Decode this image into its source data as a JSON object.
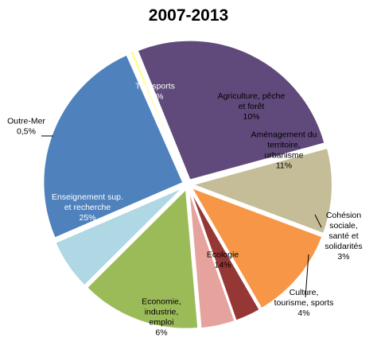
{
  "chart_data": {
    "type": "pie",
    "title": "2007-2013",
    "slices": [
      {
        "label": "Transports",
        "value_label": "27%",
        "value": 27,
        "color": "#604a7b",
        "text_color": "#ffffff"
      },
      {
        "label": "Agriculture, pêche et forêt",
        "value_label": "10%",
        "value": 10,
        "color": "#c4bd97",
        "text_color": "#000000"
      },
      {
        "label": "Aménagement du territoire, urbanisme",
        "value_label": "11%",
        "value": 11,
        "color": "#f79646",
        "text_color": "#000000"
      },
      {
        "label": "Cohésion sociale, santé et solidarités",
        "value_label": "3%",
        "value": 3,
        "color": "#953735",
        "text_color": "#000000"
      },
      {
        "label": "Culture, tourisme, sports",
        "value_label": "4%",
        "value": 4,
        "color": "#e6a29c",
        "text_color": "#000000"
      },
      {
        "label": "Ecologie",
        "value_label": "14%",
        "value": 14,
        "color": "#9bbb59",
        "text_color": "#000000"
      },
      {
        "label": "Economie, industrie, emploi",
        "value_label": "6%",
        "value": 6,
        "color": "#b7dde8",
        "text_color": "#000000"
      },
      {
        "label": "Enseignement sup. et recherche",
        "value_label": "25%",
        "value": 25,
        "color": "#4f81bd",
        "text_color": "#ffffff"
      },
      {
        "label": "Outre-Mer",
        "value_label": "0,5%",
        "value": 0.5,
        "color": "#ffff99",
        "text_color": "#000000"
      }
    ]
  }
}
